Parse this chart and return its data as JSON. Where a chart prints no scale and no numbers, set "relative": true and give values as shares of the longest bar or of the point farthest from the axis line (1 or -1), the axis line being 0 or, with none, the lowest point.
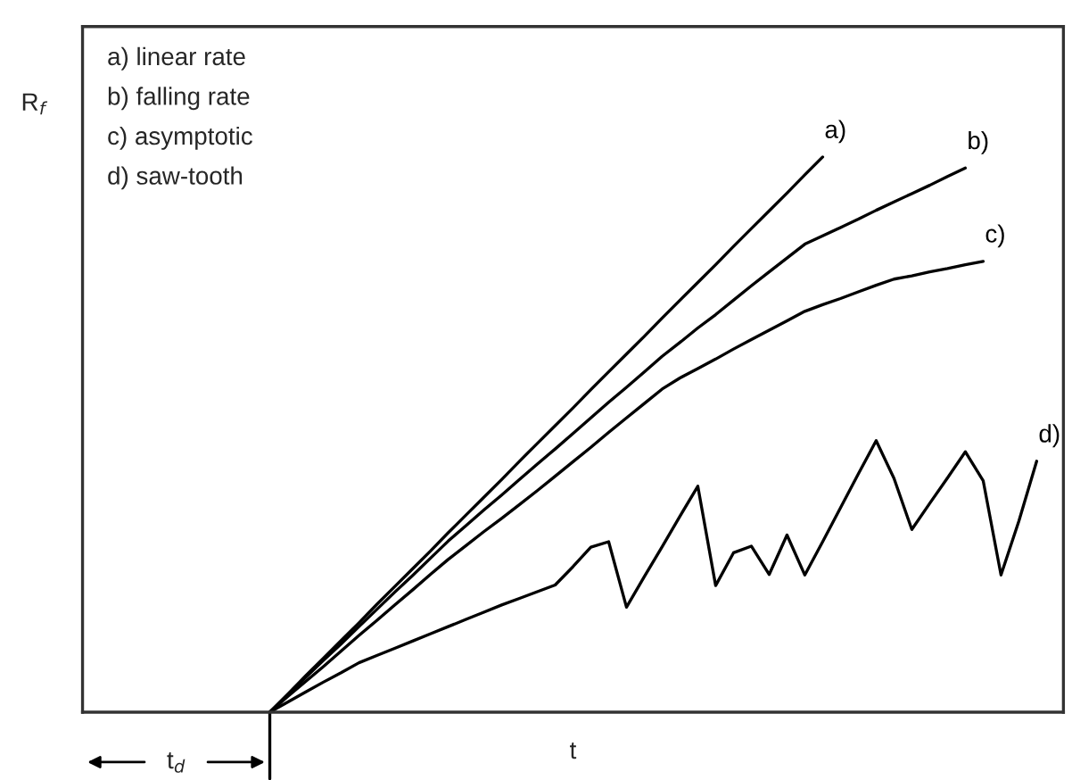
{
  "chart_data": {
    "type": "line",
    "relative": true,
    "xlabel": "t",
    "ylabel": "R$_{f}$",
    "legend": false,
    "categories": [
      null,
      null,
      null,
      null,
      null,
      null,
      null,
      null,
      null,
      null,
      null,
      null,
      null,
      null,
      null,
      null,
      null,
      null,
      null,
      null,
      null,
      null,
      null,
      null,
      null,
      null,
      null,
      null,
      null,
      null,
      null,
      null,
      null,
      null,
      null,
      null,
      null,
      null,
      null,
      null,
      null,
      null,
      null,
      null,
      null,
      null,
      null,
      null,
      null,
      null,
      null,
      null,
      null,
      null,
      null
    ],
    "annotations": [
      "a) linear rate",
      "b) falling rate",
      "c) asymptotic",
      "d) saw-tooth",
      "t$_{d}$"
    ],
    "series": [
      {
        "name": "a)",
        "color": "#000000",
        "values": [
          null,
          null,
          null,
          null,
          null,
          null,
          null,
          null,
          null,
          null,
          0,
          0.032,
          0.065,
          0.097,
          0.129,
          0.161,
          0.194,
          0.226,
          0.258,
          0.29,
          0.323,
          0.355,
          0.387,
          0.419,
          0.452,
          0.484,
          0.516,
          0.548,
          0.581,
          0.613,
          0.645,
          0.677,
          0.71,
          0.742,
          0.774,
          0.806,
          0.839,
          0.871,
          0.903,
          0.935,
          0.968,
          1,
          null,
          null,
          null,
          null,
          null,
          null,
          null,
          null,
          null,
          null,
          null,
          null,
          null
        ]
      },
      {
        "name": "b)",
        "color": "#000000",
        "values": [
          null,
          null,
          null,
          null,
          null,
          null,
          null,
          null,
          null,
          null,
          0,
          0.031,
          0.062,
          0.093,
          0.123,
          0.154,
          0.185,
          0.216,
          0.246,
          0.277,
          0.308,
          0.336,
          0.364,
          0.391,
          0.419,
          0.447,
          0.474,
          0.502,
          0.53,
          0.558,
          0.585,
          0.613,
          0.641,
          0.666,
          0.692,
          0.716,
          0.742,
          0.768,
          0.793,
          0.818,
          0.843,
          0.858,
          0.873,
          0.888,
          0.904,
          0.919,
          0.934,
          0.949,
          0.965,
          0.98,
          null,
          null,
          null,
          null,
          null
        ]
      },
      {
        "name": "c)",
        "color": "#000000",
        "values": [
          null,
          null,
          null,
          null,
          null,
          null,
          null,
          null,
          null,
          null,
          0,
          0.028,
          0.055,
          0.082,
          0.11,
          0.138,
          0.165,
          0.193,
          0.22,
          0.248,
          0.275,
          0.3,
          0.325,
          0.349,
          0.374,
          0.399,
          0.425,
          0.451,
          0.477,
          0.504,
          0.53,
          0.556,
          0.582,
          0.602,
          0.619,
          0.636,
          0.654,
          0.671,
          0.688,
          0.705,
          0.722,
          0.734,
          0.745,
          0.757,
          0.769,
          0.78,
          0.786,
          0.793,
          0.799,
          0.806,
          0.812,
          null,
          null,
          null,
          null
        ]
      },
      {
        "name": "d)",
        "color": "#000000",
        "values": [
          null,
          null,
          null,
          null,
          null,
          null,
          null,
          null,
          null,
          null,
          0,
          0.018,
          0.036,
          0.054,
          0.071,
          0.089,
          0.102,
          0.115,
          0.128,
          0.141,
          0.154,
          0.167,
          0.18,
          0.193,
          0.205,
          0.217,
          0.229,
          0.262,
          0.297,
          0.307,
          0.189,
          0.244,
          0.298,
          0.353,
          0.407,
          0.228,
          0.287,
          0.299,
          0.248,
          0.319,
          0.247,
          0.307,
          0.368,
          0.429,
          0.489,
          0.421,
          0.329,
          0.376,
          0.422,
          0.469,
          0.417,
          0.247,
          0.344,
          0.452,
          null
        ]
      }
    ]
  }
}
